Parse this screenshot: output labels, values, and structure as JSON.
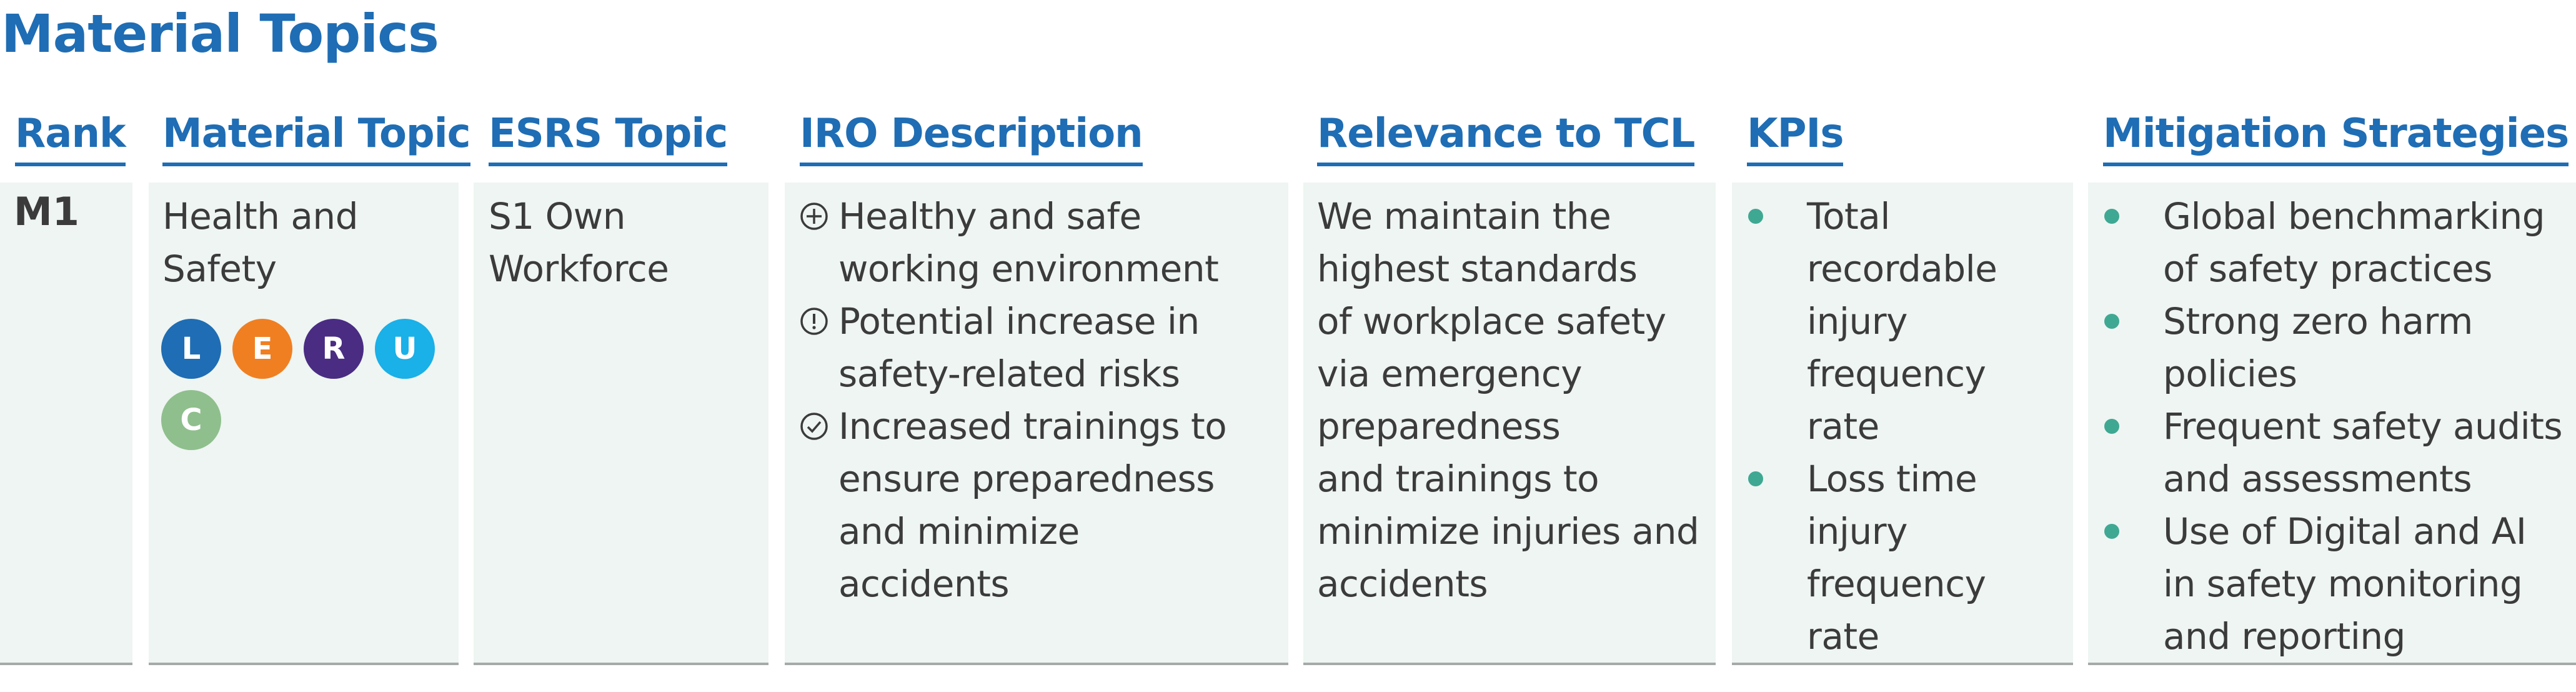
{
  "title": "Material Topics",
  "headers": {
    "rank": "Rank",
    "material_topic": "Material Topic",
    "esrs_topic": "ESRS Topic",
    "iro_description": "IRO Description",
    "relevance": "Relevance to TCL",
    "kpis": "KPIs",
    "mitigation": "Mitigation Strategies"
  },
  "row": {
    "rank": "M1",
    "material_topic_lines": [
      "Health and",
      "Safety"
    ],
    "badges": [
      {
        "letter": "L",
        "color": "#1f6db4"
      },
      {
        "letter": "E",
        "color": "#f07f22"
      },
      {
        "letter": "R",
        "color": "#4a2c83"
      },
      {
        "letter": "U",
        "color": "#1ab0e8"
      },
      {
        "letter": "C",
        "color": "#8fbf8d"
      }
    ],
    "esrs_topic_lines": [
      "S1 Own",
      "Workforce"
    ],
    "iro_items": [
      {
        "icon": "plus-circle-icon",
        "lines": [
          "Healthy and safe",
          "working environment"
        ]
      },
      {
        "icon": "exclamation-circle-icon",
        "lines": [
          "Potential increase in",
          "safety-related risks"
        ]
      },
      {
        "icon": "check-circle-icon",
        "lines": [
          "Increased trainings to",
          "ensure preparedness",
          "and minimize",
          "accidents"
        ]
      }
    ],
    "relevance_lines": [
      "We maintain the",
      "highest standards",
      "of workplace safety",
      "via emergency",
      "preparedness",
      "and trainings to",
      "minimize injuries and",
      "accidents"
    ],
    "kpis": [
      {
        "lines": [
          "Total",
          "recordable",
          "injury",
          "frequency",
          "rate"
        ]
      },
      {
        "lines": [
          "Loss time",
          "injury",
          "frequency",
          "rate"
        ]
      }
    ],
    "mitigation": [
      {
        "lines": [
          "Global benchmarking",
          "of safety practices"
        ]
      },
      {
        "lines": [
          "Strong zero harm",
          "policies"
        ]
      },
      {
        "lines": [
          "Frequent safety audits",
          "and assessments"
        ]
      },
      {
        "lines": [
          "Use of Digital and AI",
          "in safety monitoring",
          "and reporting"
        ]
      }
    ]
  },
  "colors": {
    "accent": "#1f6db4",
    "cell_bg": "#eef5f2",
    "bullet": "#3fa893",
    "text": "#3b3b3b"
  }
}
